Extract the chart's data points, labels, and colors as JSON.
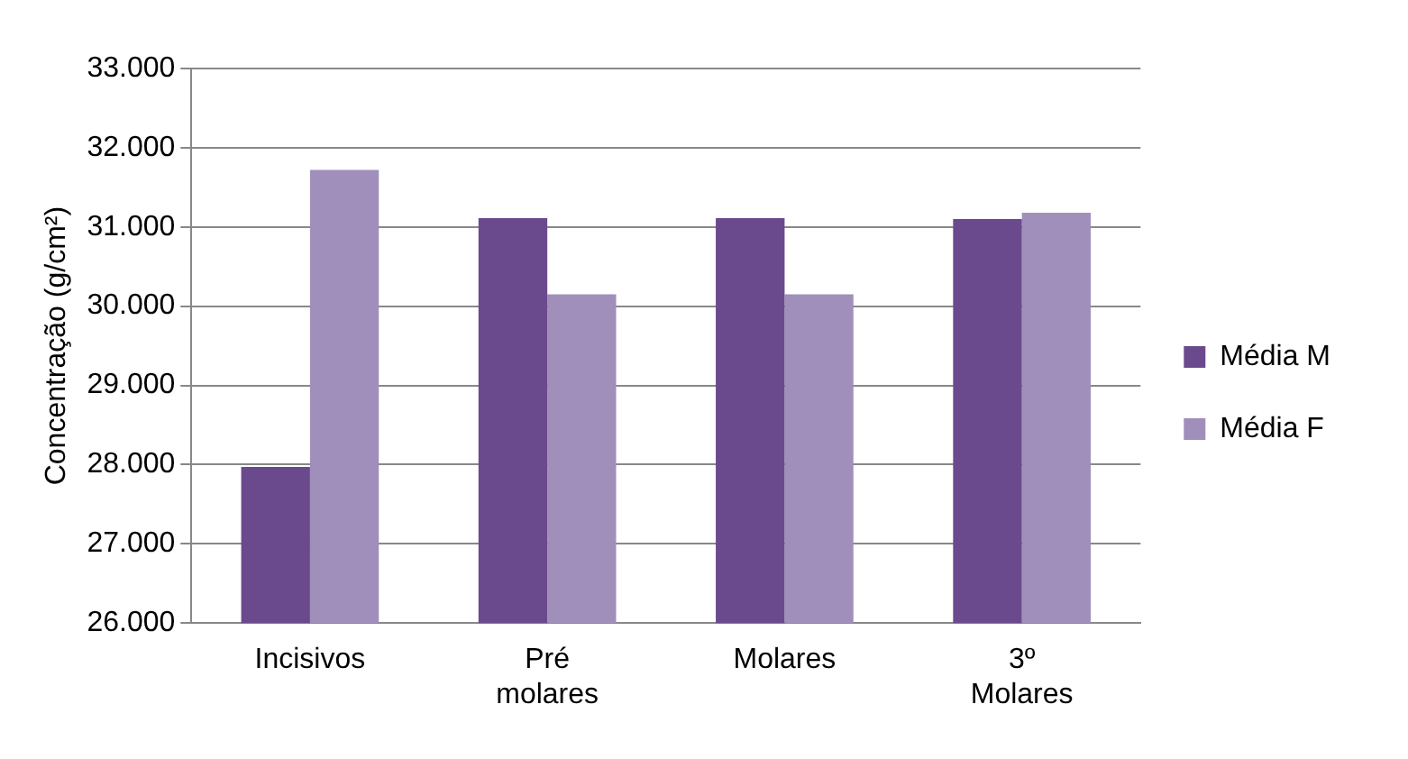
{
  "chart_data": {
    "type": "bar",
    "ylabel": "Concentração (g/cm²)",
    "categories": [
      "Incisivos",
      "Pré molares",
      "Molares",
      "3º Molares"
    ],
    "series": [
      {
        "name": "Média M",
        "color": "#6a4a8c",
        "values": [
          27970,
          31110,
          31110,
          31100
        ]
      },
      {
        "name": "Média F",
        "color": "#a08fba",
        "values": [
          31720,
          30150,
          30150,
          31180
        ]
      }
    ],
    "ylim": [
      26000,
      33000
    ],
    "yticks": [
      {
        "value": 26000,
        "label": "26.000"
      },
      {
        "value": 27000,
        "label": "27.000"
      },
      {
        "value": 28000,
        "label": "28.000"
      },
      {
        "value": 29000,
        "label": "29.000"
      },
      {
        "value": 30000,
        "label": "30.000"
      },
      {
        "value": 31000,
        "label": "31.000"
      },
      {
        "value": 32000,
        "label": "32.000"
      },
      {
        "value": 33000,
        "label": "33.000"
      }
    ],
    "grid": "y",
    "legend": "right"
  }
}
